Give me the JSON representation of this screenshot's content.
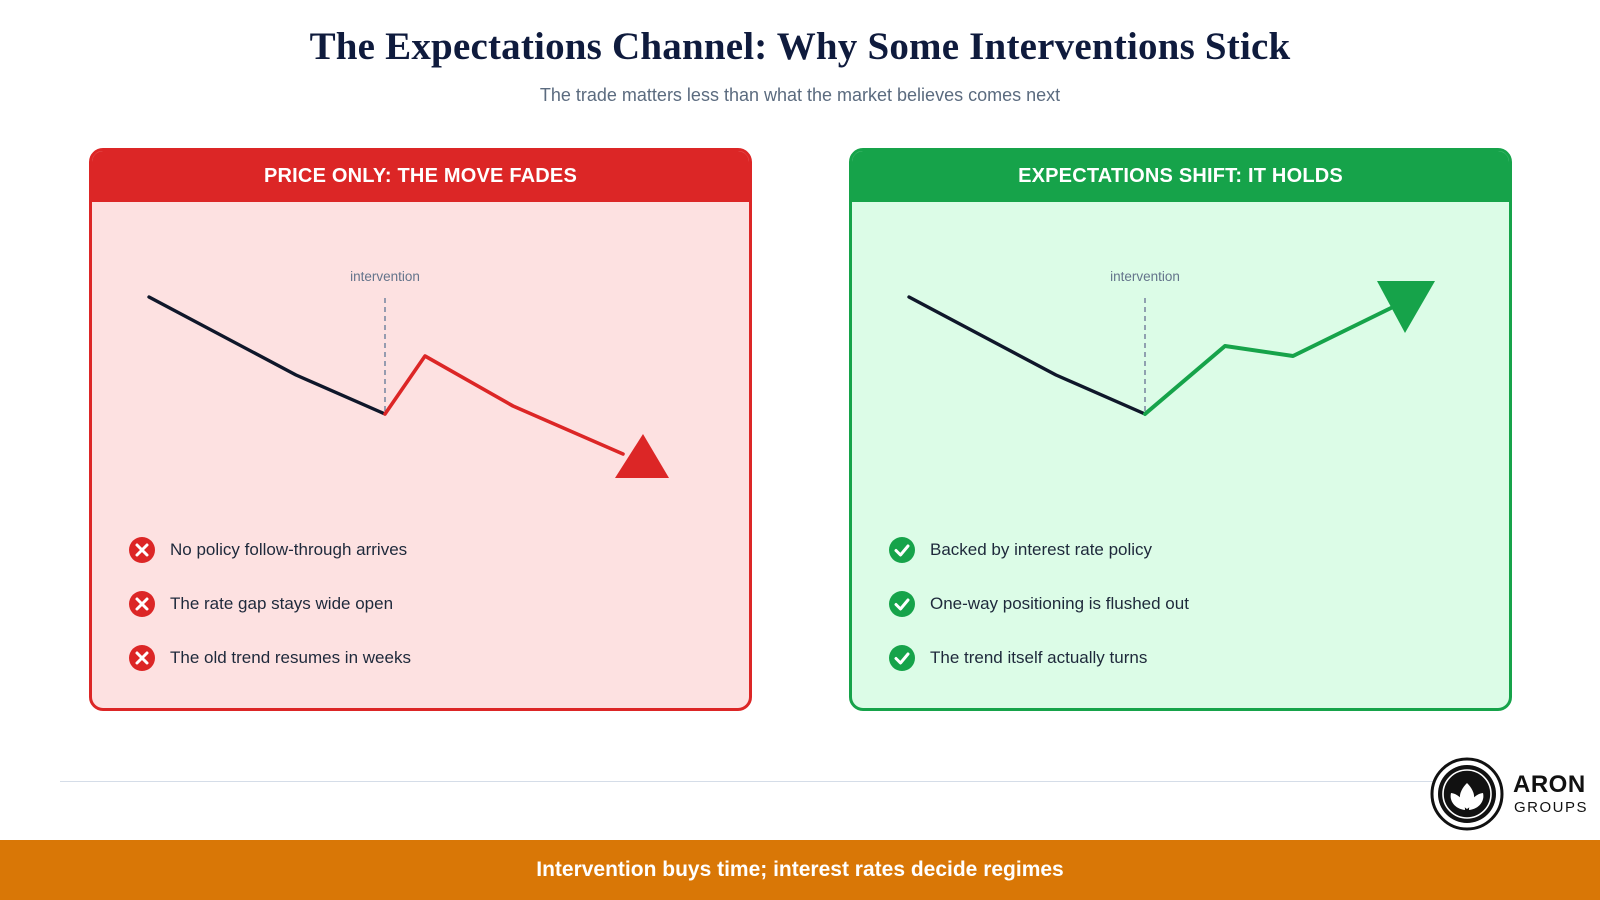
{
  "title": "The Expectations Channel: Why Some Interventions Stick",
  "subtitle": "The trade matters less than what the market believes comes next",
  "panels": [
    {
      "heading": "PRICE ONLY: THE MOVE FADES",
      "marker_label": "intervention",
      "outcome": "fades",
      "accent_color": "#dc2626",
      "points": [
        {
          "icon": "x-circle-icon",
          "text": "No policy follow-through arrives"
        },
        {
          "icon": "x-circle-icon",
          "text": "The rate gap stays wide open"
        },
        {
          "icon": "x-circle-icon",
          "text": "The old trend resumes in weeks"
        }
      ]
    },
    {
      "heading": "EXPECTATIONS SHIFT: IT HOLDS",
      "marker_label": "intervention",
      "outcome": "holds",
      "accent_color": "#16a34a",
      "points": [
        {
          "icon": "check-circle-icon",
          "text": "Backed by interest rate policy"
        },
        {
          "icon": "check-circle-icon",
          "text": "One-way positioning is flushed out"
        },
        {
          "icon": "check-circle-icon",
          "text": "The trend itself actually turns"
        }
      ]
    }
  ],
  "logo": {
    "name": "ARON",
    "subname": "GROUPS"
  },
  "footer": "Intervention buys time; interest rates decide regimes",
  "colors": {
    "trend_line": "#0f172a",
    "marker": "#64748b",
    "footer_bg": "#d97706"
  }
}
